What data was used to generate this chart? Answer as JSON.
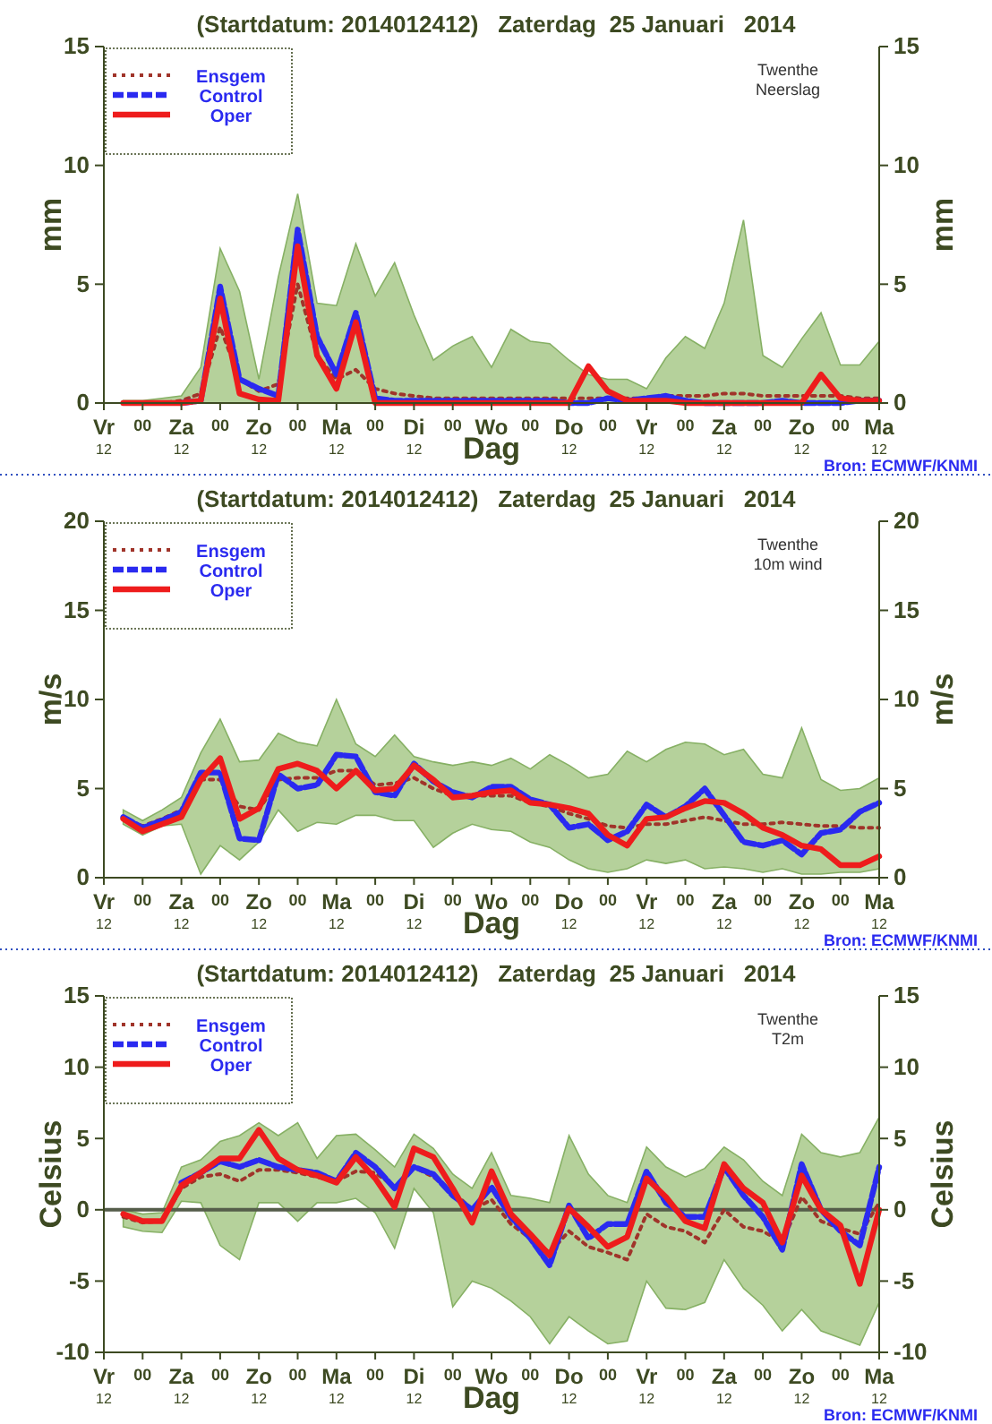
{
  "chart_data": [
    {
      "type": "line",
      "title": "(Startdatum: 2014012412)   Zaterdag  25 Januari   2014",
      "xlabel": "Dag",
      "ylabel": "mm",
      "y2label": "mm",
      "annotations": [
        "Twenthe\nNeerslag",
        "Bron: ECMWF/KNMI"
      ],
      "legend": "top left",
      "categories": [
        "Vr$_{12}$",
        null,
        "00",
        null,
        "Za$_{12}$",
        null,
        "00",
        null,
        "Zo$_{12}$",
        null,
        "00",
        null,
        "Ma$_{12}$",
        null,
        "00",
        null,
        "Di$_{12}$",
        null,
        "00",
        null,
        "Wo",
        null,
        "00",
        null,
        "Do$_{12}$",
        null,
        "00",
        null,
        "Vr$_{12}$",
        null,
        "00",
        null,
        "Za$_{12}$",
        null,
        "00",
        null,
        "Zo$_{12}$",
        null,
        "00",
        null,
        "Ma$_{12}$"
      ],
      "ylim": [
        0,
        15
      ],
      "yticks": [
        0,
        5,
        10,
        15
      ],
      "y2lim": [
        0,
        15
      ],
      "y2ticks": [
        0,
        5,
        10,
        15
      ],
      "series": [
        {
          "name": "Ensgem",
          "color": "#a0342a",
          "line_style": "dotted",
          "values": [
            null,
            0,
            0,
            0,
            0.1,
            0.4,
            3.2,
            1.0,
            0.5,
            0.8,
            5.0,
            2.0,
            1.0,
            1.4,
            0.6,
            0.4,
            0.3,
            0.2,
            0.2,
            0.2,
            0.2,
            0.2,
            0.2,
            0.2,
            0.2,
            0.2,
            0.2,
            0.2,
            0.2,
            0.3,
            0.3,
            0.3,
            0.4,
            0.4,
            0.3,
            0.3,
            0.3,
            0.3,
            0.3,
            0.2,
            0.2
          ],
          "lower": [
            null,
            0,
            0,
            0,
            0,
            0,
            0,
            0,
            0,
            0,
            0,
            0,
            0,
            0,
            0,
            0,
            0,
            0,
            0,
            0,
            0,
            0,
            0,
            0,
            0,
            0,
            0,
            0,
            0,
            0,
            0,
            0,
            0,
            0,
            0,
            0,
            0,
            0,
            0,
            0,
            0
          ],
          "upper": [
            null,
            0.1,
            0.1,
            0.2,
            0.3,
            1.5,
            6.5,
            4.7,
            1.0,
            5.3,
            8.8,
            4.2,
            4.1,
            6.7,
            4.5,
            5.9,
            3.7,
            1.8,
            2.4,
            2.8,
            1.5,
            3.1,
            2.6,
            2.5,
            1.8,
            1.2,
            1.0,
            1.0,
            0.6,
            1.9,
            2.8,
            2.3,
            4.2,
            7.7,
            2.0,
            1.5,
            2.7,
            3.8,
            1.6,
            1.6,
            2.6
          ]
        },
        {
          "name": "Control",
          "color": "#2a2af0",
          "line_style": "dashed",
          "values": [
            null,
            null,
            null,
            null,
            0,
            0.1,
            4.9,
            1.0,
            0.6,
            0.3,
            7.3,
            2.8,
            1.2,
            3.8,
            0.2,
            0.1,
            0.1,
            0.1,
            0.1,
            0.1,
            0.1,
            0.1,
            0.1,
            0.1,
            0,
            0,
            0.2,
            0.1,
            0.2,
            0.3,
            0.1,
            0,
            0,
            0,
            0,
            0.1,
            0,
            0,
            0,
            0.1,
            0.1
          ]
        },
        {
          "name": "Oper",
          "color": "#ee1c1c",
          "line_style": "solid",
          "values": [
            null,
            0,
            0,
            0,
            0,
            0.1,
            4.4,
            0.4,
            0.15,
            0.1,
            6.6,
            2.0,
            0.6,
            3.4,
            0,
            0,
            0,
            0,
            0,
            0,
            0,
            0,
            0,
            0,
            0,
            1.55,
            0.5,
            0.1,
            0.1,
            0.1,
            0,
            0,
            0,
            0,
            0,
            0,
            0,
            1.2,
            0.2,
            0.1,
            0.1
          ]
        }
      ]
    },
    {
      "type": "line",
      "title": "(Startdatum: 2014012412)   Zaterdag  25 Januari   2014",
      "xlabel": "Dag",
      "ylabel": "m/s",
      "y2label": "m/s",
      "annotations": [
        "Twenthe\n10m wind",
        "Bron: ECMWF/KNMI"
      ],
      "legend": "top left",
      "categories": [
        "Vr$_{12}$",
        null,
        "00",
        null,
        "Za$_{12}$",
        null,
        "00",
        null,
        "Zo$_{12}$",
        null,
        "00",
        null,
        "Ma$_{12}$",
        null,
        "00",
        null,
        "Di$_{12}$",
        null,
        "00",
        null,
        "Wo",
        null,
        "00",
        null,
        "Do$_{12}$",
        null,
        "00",
        null,
        "Vr$_{12}$",
        null,
        "00",
        null,
        "Za$_{12}$",
        null,
        "00",
        null,
        "Zo$_{12}$",
        null,
        "00",
        null,
        "Ma$_{12}$"
      ],
      "ylim": [
        0,
        20
      ],
      "yticks": [
        0,
        5,
        10,
        15,
        20
      ],
      "y2lim": [
        0,
        20
      ],
      "y2ticks": [
        0,
        5,
        10,
        15,
        20
      ],
      "series": [
        {
          "name": "Ensgem",
          "color": "#a0342a",
          "line_style": "dotted",
          "values": [
            null,
            3.3,
            2.9,
            3.3,
            3.8,
            5.5,
            5.5,
            4.0,
            3.8,
            5.5,
            5.6,
            5.6,
            6.0,
            6.0,
            5.2,
            5.3,
            5.6,
            5.0,
            4.6,
            4.6,
            4.6,
            4.6,
            4.2,
            4.0,
            3.6,
            3.3,
            2.9,
            2.8,
            3.0,
            3.0,
            3.2,
            3.4,
            3.2,
            3.0,
            3.0,
            3.1,
            3.0,
            2.9,
            2.9,
            2.8,
            2.8
          ],
          "lower": [
            null,
            3.0,
            2.4,
            2.9,
            3.0,
            0.2,
            1.8,
            1.0,
            2.0,
            3.8,
            2.6,
            3.1,
            3.0,
            3.5,
            3.5,
            3.2,
            3.2,
            1.7,
            2.5,
            3.0,
            2.7,
            2.6,
            2.0,
            1.7,
            1.0,
            0.5,
            0.3,
            0.5,
            1.0,
            0.8,
            1.0,
            0.5,
            0.6,
            0.5,
            0.3,
            0.5,
            0.2,
            0.2,
            0.3,
            0.3,
            0.5
          ],
          "upper": [
            null,
            3.8,
            3.2,
            3.8,
            4.5,
            7.0,
            8.9,
            6.5,
            6.6,
            8.1,
            7.6,
            7.4,
            10.0,
            7.5,
            6.8,
            8.0,
            6.8,
            6.5,
            6.3,
            6.5,
            6.3,
            6.7,
            6.1,
            6.9,
            6.3,
            5.6,
            5.8,
            7.1,
            6.5,
            7.2,
            7.6,
            7.5,
            6.9,
            7.2,
            5.8,
            5.6,
            8.4,
            5.5,
            4.9,
            5.0,
            5.6
          ]
        },
        {
          "name": "Control",
          "color": "#2a2af0",
          "line_style": "dashed",
          "values": [
            null,
            3.4,
            2.8,
            3.2,
            3.7,
            5.9,
            5.9,
            2.2,
            2.1,
            5.8,
            5.0,
            5.2,
            6.9,
            6.8,
            4.8,
            4.6,
            6.4,
            5.4,
            4.8,
            4.5,
            5.1,
            5.1,
            4.4,
            4.1,
            2.8,
            3.0,
            2.1,
            2.6,
            4.1,
            3.4,
            4.0,
            5.0,
            3.5,
            2.0,
            1.8,
            2.1,
            1.3,
            2.5,
            2.7,
            3.7,
            4.2
          ]
        },
        {
          "name": "Oper",
          "color": "#ee1c1c",
          "line_style": "solid",
          "values": [
            null,
            3.3,
            2.6,
            3.0,
            3.4,
            5.5,
            6.7,
            3.3,
            3.9,
            6.1,
            6.4,
            6.0,
            5.0,
            6.0,
            4.9,
            5.0,
            6.3,
            5.5,
            4.5,
            4.6,
            4.8,
            4.9,
            4.2,
            4.1,
            3.9,
            3.6,
            2.4,
            1.8,
            3.3,
            3.4,
            3.9,
            4.3,
            4.2,
            3.6,
            2.8,
            2.4,
            1.8,
            1.6,
            0.7,
            0.7,
            1.2
          ]
        }
      ]
    },
    {
      "type": "line",
      "title": "(Startdatum: 2014012412)   Zaterdag  25 Januari   2014",
      "xlabel": "Dag",
      "ylabel": "Celsius",
      "y2label": "Celsius",
      "annotations": [
        "Twenthe\nT2m",
        "Bron: ECMWF/KNMI"
      ],
      "legend": "top left",
      "categories": [
        "Vr$_{12}$",
        null,
        "00",
        null,
        "Za$_{12}$",
        null,
        "00",
        null,
        "Zo$_{12}$",
        null,
        "00",
        null,
        "Ma$_{12}$",
        null,
        "00",
        null,
        "Di$_{12}$",
        null,
        "00",
        null,
        "Wo",
        null,
        "00",
        null,
        "Do$_{12}$",
        null,
        "00",
        null,
        "Vr$_{12}$",
        null,
        "00",
        null,
        "Za$_{12}$",
        null,
        "00",
        null,
        "Zo$_{12}$",
        null,
        "00",
        null,
        "Ma$_{12}$"
      ],
      "ylim": [
        -10,
        15
      ],
      "yticks": [
        -10,
        -5,
        0,
        5,
        10,
        15
      ],
      "y2lim": [
        -10,
        15
      ],
      "y2ticks": [
        -10,
        -5,
        0,
        5,
        10,
        15
      ],
      "ref_lines": [
        {
          "axis": "y",
          "value": 0,
          "color": "#555d4a"
        }
      ],
      "series": [
        {
          "name": "Ensgem",
          "color": "#a0342a",
          "line_style": "dotted",
          "values": [
            null,
            -0.5,
            -0.9,
            -0.8,
            1.5,
            2.3,
            2.5,
            2.0,
            2.8,
            2.8,
            2.6,
            2.3,
            2.0,
            2.7,
            2.6,
            1.6,
            3.0,
            2.3,
            1.3,
            0.0,
            0.7,
            -1.0,
            -2.0,
            -3.0,
            -1.5,
            -2.6,
            -3.0,
            -3.5,
            -0.3,
            -1.2,
            -1.5,
            -2.3,
            0.0,
            -1.2,
            -1.5,
            -2.3,
            0.9,
            -0.8,
            -1.3,
            -1.7,
            0.5
          ],
          "lower": [
            null,
            -1.2,
            -1.5,
            -1.6,
            0.6,
            0.5,
            -2.5,
            -3.5,
            0.5,
            0.5,
            -0.8,
            0.5,
            0.5,
            0.8,
            -0.2,
            -2.7,
            1.5,
            -0.2,
            -6.8,
            -5.0,
            -5.5,
            -6.4,
            -7.5,
            -9.4,
            -7.5,
            -8.5,
            -9.4,
            -9.2,
            -5.0,
            -6.9,
            -7.0,
            -6.5,
            -3.5,
            -5.5,
            -6.7,
            -8.5,
            -7.0,
            -8.5,
            -9.0,
            -9.5,
            -6.5
          ],
          "upper": [
            null,
            0.0,
            -0.3,
            -0.2,
            3.0,
            3.5,
            4.8,
            5.2,
            6.1,
            5.2,
            6.1,
            3.6,
            5.2,
            5.3,
            4.2,
            3.0,
            5.3,
            4.3,
            2.5,
            1.5,
            4.0,
            1.0,
            0.8,
            0.5,
            5.2,
            2.5,
            1.0,
            0.5,
            4.4,
            3.0,
            2.3,
            2.9,
            4.4,
            3.5,
            2.0,
            1.0,
            5.3,
            4.0,
            3.7,
            4.0,
            6.5
          ]
        },
        {
          "name": "Control",
          "color": "#2a2af0",
          "line_style": "dashed",
          "values": [
            null,
            null,
            null,
            null,
            1.9,
            2.6,
            3.4,
            3.0,
            3.5,
            3.0,
            2.8,
            2.6,
            2.0,
            4.0,
            3.0,
            1.5,
            3.0,
            2.5,
            1.0,
            0.0,
            1.6,
            -0.5,
            -2.0,
            -3.9,
            0.3,
            -2.0,
            -1.0,
            -1.0,
            2.7,
            0.5,
            -0.5,
            -0.5,
            3.0,
            1.0,
            -0.5,
            -2.8,
            3.2,
            0.0,
            -1.5,
            -2.5,
            3.0
          ]
        },
        {
          "name": "Oper",
          "color": "#ee1c1c",
          "line_style": "solid",
          "values": [
            null,
            -0.3,
            -0.8,
            -0.8,
            1.7,
            2.6,
            3.6,
            3.6,
            5.6,
            3.6,
            2.8,
            2.4,
            1.9,
            3.7,
            2.2,
            0.2,
            4.3,
            3.7,
            1.5,
            -0.9,
            2.7,
            -0.3,
            -1.7,
            -3.2,
            0.1,
            -1.2,
            -2.6,
            -1.9,
            2.2,
            0.9,
            -0.8,
            -1.3,
            3.2,
            1.5,
            0.5,
            -2.3,
            2.4,
            0,
            -1.1,
            -5.2,
            0
          ]
        }
      ]
    }
  ]
}
